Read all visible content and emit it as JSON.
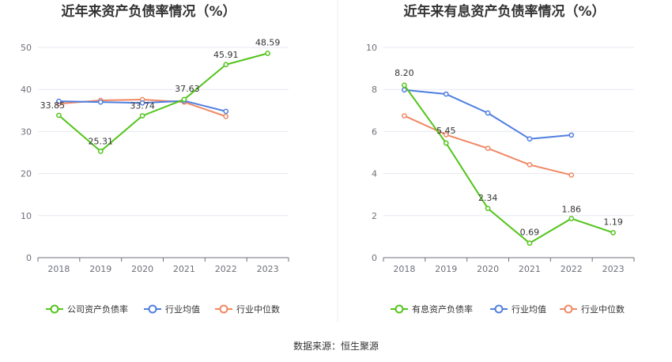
{
  "source_text": "数据来源：恒生聚源",
  "chart_data": [
    {
      "type": "line",
      "title": "近年来资产负债率情况（%）",
      "categories": [
        "2018",
        "2019",
        "2020",
        "2021",
        "2022",
        "2023"
      ],
      "ylim": [
        0,
        50
      ],
      "yticks": [
        0,
        10,
        20,
        30,
        40,
        50
      ],
      "grid": true,
      "legend_position": "bottom",
      "series": [
        {
          "name": "公司资产负债率",
          "color": "#52c41a",
          "values": [
            33.85,
            25.31,
            33.74,
            37.63,
            45.91,
            48.59
          ],
          "labels": [
            "33.85",
            "25.31",
            "33.74",
            "37.63",
            "45.91",
            "48.59"
          ]
        },
        {
          "name": "行业均值",
          "color": "#4f7fe0",
          "values": [
            37.2,
            37.0,
            36.8,
            37.3,
            34.8,
            null
          ],
          "labels": []
        },
        {
          "name": "行业中位数",
          "color": "#f08763",
          "values": [
            36.6,
            37.4,
            37.6,
            37.0,
            33.6,
            null
          ],
          "labels": []
        }
      ]
    },
    {
      "type": "line",
      "title": "近年来有息资产负债率情况（%）",
      "categories": [
        "2018",
        "2019",
        "2020",
        "2021",
        "2022",
        "2023"
      ],
      "ylim": [
        0,
        10
      ],
      "yticks": [
        0,
        2,
        4,
        6,
        8,
        10
      ],
      "grid": true,
      "legend_position": "bottom",
      "series": [
        {
          "name": "有息资产负债率",
          "color": "#52c41a",
          "values": [
            8.2,
            5.45,
            2.34,
            0.69,
            1.86,
            1.19
          ],
          "labels": [
            "8.20",
            "5.45",
            "2.34",
            "0.69",
            "1.86",
            "1.19"
          ]
        },
        {
          "name": "行业均值",
          "color": "#4f7fe0",
          "values": [
            7.98,
            7.78,
            6.88,
            5.65,
            5.83,
            null
          ],
          "labels": []
        },
        {
          "name": "行业中位数",
          "color": "#f08763",
          "values": [
            6.75,
            5.85,
            5.2,
            4.42,
            3.93,
            null
          ],
          "labels": []
        }
      ]
    }
  ]
}
